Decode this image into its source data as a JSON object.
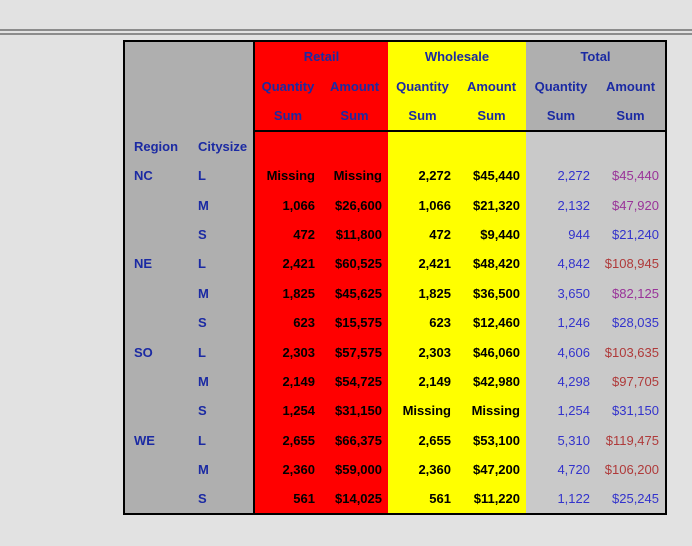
{
  "page": {
    "background": "#e2e2e2",
    "separator_color": "#8c8c8c"
  },
  "table": {
    "groups": {
      "retail": {
        "label": "Retail",
        "bg": "#ff0000"
      },
      "wholesale": {
        "label": "Wholesale",
        "bg": "#ffff00"
      },
      "total": {
        "label": "Total",
        "bg_header": "#afafaf",
        "bg_body": "#c9c9c9"
      }
    },
    "subheader": {
      "quantity": "Quantity",
      "amount": "Amount",
      "sum": "Sum"
    },
    "stub": {
      "region": "Region",
      "citysize": "Citysize"
    },
    "colors": {
      "header_text": "#1b2aa3",
      "data_text": "#000000",
      "total_quantity": "#3333cc",
      "amount_low": "#3333cc",
      "amount_mid": "#993399",
      "amount_high": "#af3a3a"
    },
    "rows": [
      {
        "region": "NC",
        "citysize": "L",
        "retail_quantity": "Missing",
        "retail_amount": "Missing",
        "wholesale_quantity": "2,272",
        "wholesale_amount": "$45,440",
        "total_quantity": "2,272",
        "total_amount": "$45,440",
        "total_amount_color": "#993399"
      },
      {
        "region": "",
        "citysize": "M",
        "retail_quantity": "1,066",
        "retail_amount": "$26,600",
        "wholesale_quantity": "1,066",
        "wholesale_amount": "$21,320",
        "total_quantity": "2,132",
        "total_amount": "$47,920",
        "total_amount_color": "#993399"
      },
      {
        "region": "",
        "citysize": "S",
        "retail_quantity": "472",
        "retail_amount": "$11,800",
        "wholesale_quantity": "472",
        "wholesale_amount": "$9,440",
        "total_quantity": "944",
        "total_amount": "$21,240",
        "total_amount_color": "#3333cc"
      },
      {
        "region": "NE",
        "citysize": "L",
        "retail_quantity": "2,421",
        "retail_amount": "$60,525",
        "wholesale_quantity": "2,421",
        "wholesale_amount": "$48,420",
        "total_quantity": "4,842",
        "total_amount": "$108,945",
        "total_amount_color": "#af3a3a"
      },
      {
        "region": "",
        "citysize": "M",
        "retail_quantity": "1,825",
        "retail_amount": "$45,625",
        "wholesale_quantity": "1,825",
        "wholesale_amount": "$36,500",
        "total_quantity": "3,650",
        "total_amount": "$82,125",
        "total_amount_color": "#993399"
      },
      {
        "region": "",
        "citysize": "S",
        "retail_quantity": "623",
        "retail_amount": "$15,575",
        "wholesale_quantity": "623",
        "wholesale_amount": "$12,460",
        "total_quantity": "1,246",
        "total_amount": "$28,035",
        "total_amount_color": "#3333cc"
      },
      {
        "region": "SO",
        "citysize": "L",
        "retail_quantity": "2,303",
        "retail_amount": "$57,575",
        "wholesale_quantity": "2,303",
        "wholesale_amount": "$46,060",
        "total_quantity": "4,606",
        "total_amount": "$103,635",
        "total_amount_color": "#af3a3a"
      },
      {
        "region": "",
        "citysize": "M",
        "retail_quantity": "2,149",
        "retail_amount": "$54,725",
        "wholesale_quantity": "2,149",
        "wholesale_amount": "$42,980",
        "total_quantity": "4,298",
        "total_amount": "$97,705",
        "total_amount_color": "#af3a3a"
      },
      {
        "region": "",
        "citysize": "S",
        "retail_quantity": "1,254",
        "retail_amount": "$31,150",
        "wholesale_quantity": "Missing",
        "wholesale_amount": "Missing",
        "total_quantity": "1,254",
        "total_amount": "$31,150",
        "total_amount_color": "#3333cc"
      },
      {
        "region": "WE",
        "citysize": "L",
        "retail_quantity": "2,655",
        "retail_amount": "$66,375",
        "wholesale_quantity": "2,655",
        "wholesale_amount": "$53,100",
        "total_quantity": "5,310",
        "total_amount": "$119,475",
        "total_amount_color": "#af3a3a"
      },
      {
        "region": "",
        "citysize": "M",
        "retail_quantity": "2,360",
        "retail_amount": "$59,000",
        "wholesale_quantity": "2,360",
        "wholesale_amount": "$47,200",
        "total_quantity": "4,720",
        "total_amount": "$106,200",
        "total_amount_color": "#af3a3a"
      },
      {
        "region": "",
        "citysize": "S",
        "retail_quantity": "561",
        "retail_amount": "$14,025",
        "wholesale_quantity": "561",
        "wholesale_amount": "$11,220",
        "total_quantity": "1,122",
        "total_amount": "$25,245",
        "total_amount_color": "#3333cc"
      }
    ]
  }
}
